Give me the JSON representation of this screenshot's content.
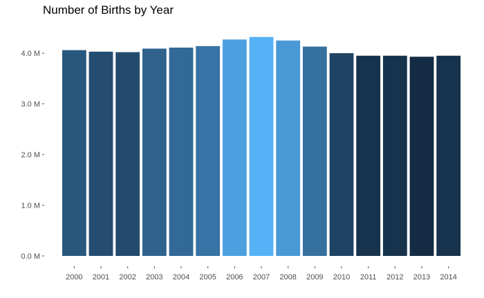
{
  "chart_data": {
    "type": "bar",
    "title": "Number of Births by Year",
    "xlabel": "",
    "ylabel": "",
    "categories": [
      "2000",
      "2001",
      "2002",
      "2003",
      "2004",
      "2005",
      "2006",
      "2007",
      "2008",
      "2009",
      "2010",
      "2011",
      "2012",
      "2013",
      "2014"
    ],
    "values": [
      4.06,
      4.03,
      4.02,
      4.09,
      4.11,
      4.14,
      4.27,
      4.32,
      4.25,
      4.13,
      4.0,
      3.95,
      3.95,
      3.93,
      3.95
    ],
    "value_unit": "M",
    "ylim": [
      0,
      4.4
    ],
    "yticks": [
      0,
      1,
      2,
      3,
      4
    ],
    "ytick_labels": [
      "0.0 M",
      "1.0 M",
      "2.0 M",
      "3.0 M",
      "4.0 M"
    ],
    "grid": false,
    "legend": "none",
    "colors": {
      "low": "#132b43",
      "high": "#56b1f7"
    }
  }
}
